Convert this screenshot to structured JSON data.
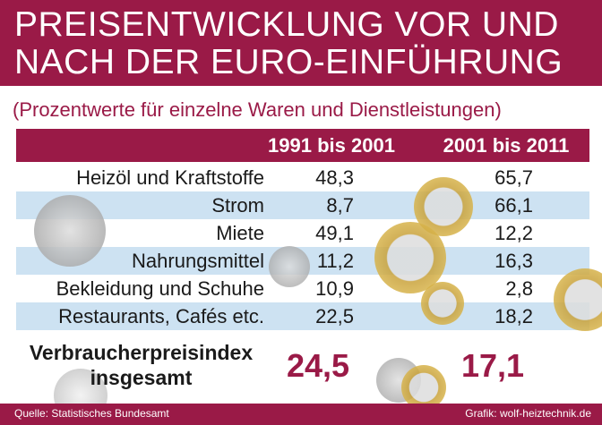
{
  "header": {
    "title_lines": [
      "PREISENTWICKLUNG VOR UND",
      "NACH DER EURO-EINFÜHRUNG"
    ],
    "subtitle": "(Prozentwerte für einzelne Waren und Dienstleistungen)"
  },
  "table": {
    "columns": [
      "1991 bis 2001",
      "2001 bis 2011"
    ],
    "rows": [
      [
        "Heizöl und Kraftstoffe",
        "48,3",
        "65,7"
      ],
      [
        "Strom",
        "8,7",
        "66,1"
      ],
      [
        "Miete",
        "49,1",
        "12,2"
      ],
      [
        "Nahrungsmittel",
        "11,2",
        "16,3"
      ],
      [
        "Bekleidung und Schuhe",
        "10,9",
        "2,8"
      ],
      [
        "Restaurants, Cafés etc.",
        "22,5",
        "18,2"
      ]
    ],
    "total": {
      "label_lines": [
        "Verbraucherpreisindex",
        "insgesamt"
      ],
      "values": [
        "24,5",
        "17,1"
      ]
    }
  },
  "footer": {
    "source": "Quelle: Statistisches Bundesamt",
    "credit": "Grafik: wolf-heiztechnik.de"
  }
}
